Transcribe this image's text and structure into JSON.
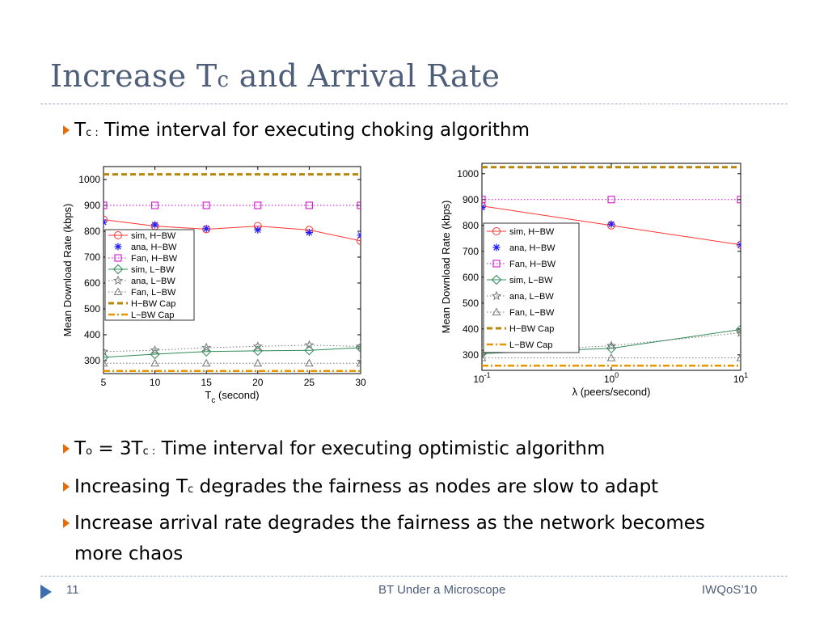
{
  "slide": {
    "title_main": "Increase T",
    "title_sub": "c",
    "title_rest": " and Arrival Rate"
  },
  "bullets": {
    "b0_a": "T",
    "b0_sub": "c :",
    "b0_b": " Time interval for executing choking algorithm",
    "b1_a": "T",
    "b1_sub1": "o",
    "b1_b": " = 3T",
    "b1_sub2": "c :",
    "b1_c": "  Time interval for executing optimistic algorithm",
    "b2_a": "Increasing T",
    "b2_sub": "c",
    "b2_b": " degrades the fairness as nodes are slow to adapt",
    "b3_line1": "Increase arrival rate degrades the fairness as the network becomes",
    "b3_line2": "more chaos"
  },
  "footer": {
    "page": "11",
    "center": "BT Under a Microscope",
    "right": "IWQoS’10"
  },
  "colors": {
    "title": "#4e5d78",
    "bullet_arrow": "#e46c0a",
    "sim_h": "#ff3333",
    "ana_h": "#1a1aff",
    "fan_h": "#cc00cc",
    "sim_l": "#2e8b57",
    "ana_l": "#777777",
    "fan_l": "#777777",
    "h_cap": "#b8860b",
    "l_cap": "#e69500"
  },
  "chart_data": [
    {
      "type": "line",
      "xlabel": "T_c (second)",
      "ylabel": "Mean Download Rate (kbps)",
      "xscale": "linear",
      "x": [
        5,
        10,
        15,
        20,
        25,
        30
      ],
      "xticks": [
        "5",
        "10",
        "15",
        "20",
        "25",
        "30"
      ],
      "ylim": [
        250,
        1050
      ],
      "yticks": [
        "300",
        "400",
        "500",
        "600",
        "700",
        "800",
        "900",
        "1000"
      ],
      "legend_position": "left",
      "series": [
        {
          "name": "sim, H−BW",
          "marker": "circle",
          "values": [
            845,
            820,
            808,
            820,
            805,
            763
          ]
        },
        {
          "name": "ana, H−BW",
          "marker": "asterisk",
          "values": [
            835,
            825,
            810,
            805,
            795,
            785
          ]
        },
        {
          "name": "Fan, H−BW",
          "marker": "square",
          "values": [
            900,
            900,
            900,
            900,
            900,
            900
          ]
        },
        {
          "name": "sim, L−BW",
          "marker": "diamond",
          "values": [
            313,
            325,
            335,
            338,
            340,
            350
          ]
        },
        {
          "name": "ana, L−BW",
          "marker": "star",
          "values": [
            335,
            340,
            350,
            355,
            360,
            355
          ]
        },
        {
          "name": "Fan, L−BW",
          "marker": "triangle",
          "values": [
            290,
            290,
            290,
            290,
            290,
            290
          ]
        },
        {
          "name": "H−BW Cap",
          "marker": "none",
          "values": [
            1020,
            1020,
            1020,
            1020,
            1020,
            1020
          ]
        },
        {
          "name": "L−BW Cap",
          "marker": "none",
          "values": [
            260,
            260,
            260,
            260,
            260,
            260
          ]
        }
      ]
    },
    {
      "type": "line",
      "xlabel": "λ (peers/second)",
      "ylabel": "Mean Download Rate (kbps)",
      "xscale": "log",
      "x": [
        0.1,
        1,
        10
      ],
      "xticks": [
        "10^-1",
        "10^0",
        "10^1"
      ],
      "ylim": [
        240,
        1040
      ],
      "yticks": [
        "300",
        "400",
        "500",
        "600",
        "700",
        "800",
        "900",
        "1000"
      ],
      "legend_position": "left",
      "series": [
        {
          "name": "sim, H−BW",
          "marker": "circle",
          "values": [
            875,
            800,
            725
          ]
        },
        {
          "name": "ana, H−BW",
          "marker": "asterisk",
          "values": [
            870,
            805,
            725
          ]
        },
        {
          "name": "Fan, H−BW",
          "marker": "square",
          "values": [
            900,
            900,
            900
          ]
        },
        {
          "name": "sim, L−BW",
          "marker": "diamond",
          "values": [
            305,
            325,
            398
          ]
        },
        {
          "name": "ana, L−BW",
          "marker": "star",
          "values": [
            310,
            335,
            385
          ]
        },
        {
          "name": "Fan, L−BW",
          "marker": "triangle",
          "values": [
            288,
            288,
            288
          ]
        },
        {
          "name": "H−BW Cap",
          "marker": "none",
          "values": [
            1025,
            1025,
            1025
          ]
        },
        {
          "name": "L−BW Cap",
          "marker": "none",
          "values": [
            258,
            258,
            258
          ]
        }
      ]
    }
  ]
}
